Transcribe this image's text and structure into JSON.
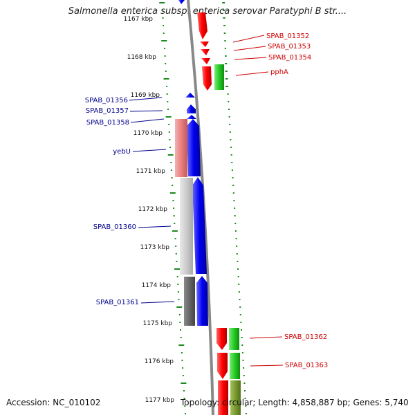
{
  "title": "Salmonella enterica subsp. enterica serovar Paratyphi B str....",
  "accession": "Accession: NC_010102",
  "summary": "Topology: circular; Length: 4,858,887 bp; Genes: 5,740",
  "ticks": [
    "1167 kbp",
    "1168 kbp",
    "1169 kbp",
    "1170 kbp",
    "1171 kbp",
    "1172 kbp",
    "1173 kbp",
    "1174 kbp",
    "1175 kbp",
    "1176 kbp",
    "1177 kbp"
  ],
  "genes_right": [
    "SPAB_01352",
    "SPAB_01353",
    "SPAB_01354",
    "pphA",
    "SPAB_01362",
    "SPAB_01363"
  ],
  "genes_left": [
    "SPAB_01356",
    "SPAB_01357",
    "SPAB_01358",
    "yebU",
    "SPAB_01360",
    "SPAB_01361"
  ],
  "colors": {
    "forward": "#e60000",
    "reverse": "#0000e6",
    "cog_green": "#22cc22",
    "cog_pink": "#e88080",
    "cog_lightgray": "#cccccc",
    "cog_darkgray": "#666666",
    "cog_olive": "#7a9a30",
    "left_label": "#00008b",
    "right_label": "#cc0000",
    "tick_dots": "#1a8a1a",
    "backbone": "#888888"
  }
}
